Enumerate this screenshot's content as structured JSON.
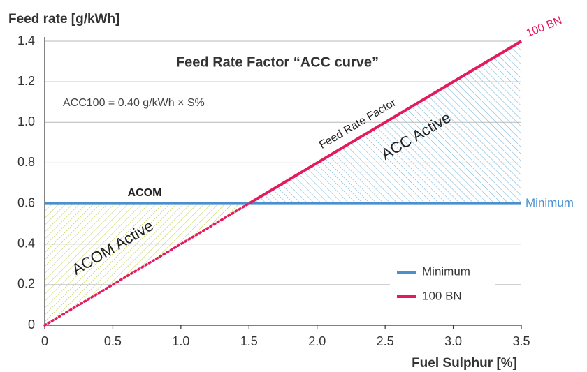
{
  "chart_data": {
    "type": "line",
    "title": "Feed Rate Factor “ACC curve”",
    "y_label": "Feed rate [g/kWh]",
    "x_label": "Fuel Sulphur [%]",
    "annotations": [
      "ACC100 = 0.40 g/kWh × S%",
      "ACOM",
      "Feed Rate Factor",
      "ACC Active",
      "ACOM Active"
    ],
    "series": [
      {
        "name": "Minimum",
        "color": "#4a90d0",
        "x": [
          0,
          3.5
        ],
        "values": [
          0.6,
          0.6
        ]
      },
      {
        "name": "100 BN",
        "color": "#e31b5c",
        "x": [
          0,
          1.5,
          3.5
        ],
        "values": [
          0,
          0.6,
          1.4
        ]
      }
    ],
    "xlim": [
      0,
      3.5
    ],
    "xticks": [
      0,
      0.5,
      {
        "value": 1,
        "label": "1.0"
      },
      1.5,
      {
        "value": 2,
        "label": "2.0"
      },
      2.5,
      {
        "value": 3,
        "label": "3.0"
      },
      3.5
    ],
    "ylim": [
      0,
      1.4
    ],
    "yticks": [
      0,
      0.2,
      0.4,
      0.6,
      0.8,
      {
        "value": 1,
        "label": "1.0"
      },
      1.2,
      1.4
    ],
    "grid": true,
    "legend": "lower right"
  }
}
